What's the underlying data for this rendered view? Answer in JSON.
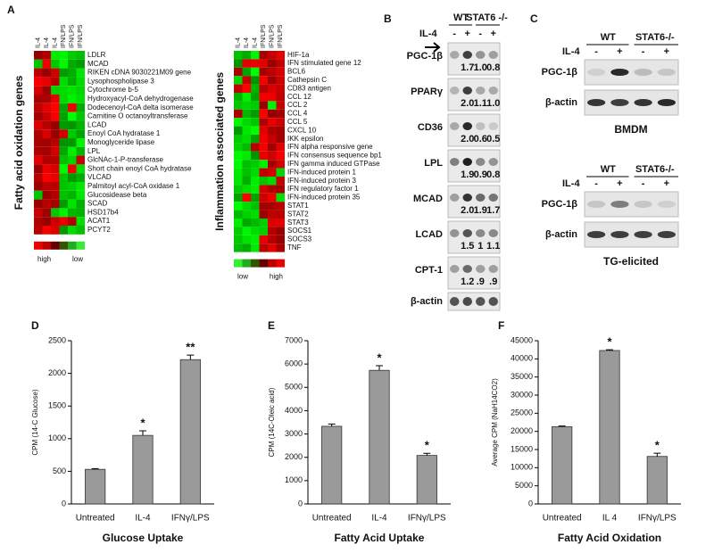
{
  "heatmap_a": {
    "label": "A",
    "left": {
      "title": "Fatty acid oxidation genes",
      "columns": [
        "IL-4",
        "IL-4",
        "IL-4",
        "IFN/LPS",
        "IFN/LPS",
        "IFN/LPS"
      ],
      "genes": [
        "LDLR",
        "MCAD",
        "RIKEN cDNA 9030221M09 gene",
        "Lysophospholipase 3",
        "Cytochrome b-5",
        "Hydroxyacyl-CoA dehydrogenase",
        "Dodecenoyl-CoA delta isomerase",
        "Carnitine O octanoyltransferase",
        "LCAD",
        "Enoyl CoA hydratase 1",
        "Monoglyceride lipase",
        "LPL",
        "GlcNAc-1-P-transferase",
        "Short chain enoyl CoA hydratase",
        "VLCAD",
        "Palmitoyl acyl-CoA oxidase 1",
        "Glucosidease beta",
        "SCAD",
        "HSD17b4",
        "ACAT1",
        "PCYT2"
      ],
      "legend": [
        "high",
        "low"
      ]
    },
    "right": {
      "title": "Inflammation associated genes",
      "columns": [
        "IL-4",
        "IL-4",
        "IL-4",
        "IFN/LPS",
        "IFN/LPS",
        "IFN/LPS"
      ],
      "genes": [
        "HIF-1a",
        "IFN stimulated gene 12",
        "BCL6",
        "Cathepsin C",
        "CD83 antigen",
        "CCL 12",
        "CCL 2",
        "CCL 4",
        "CCL 5",
        "CXCL 10",
        "IKK epsilon",
        "IFN alpha responsive gene",
        "IFN consensus sequence bp1",
        "IFN gamma induced GTPase",
        "IFN-induced protein 1",
        "IFN-induced protein 3",
        "IFN regulatory factor 1",
        "IFN-induced protein 35",
        "STAT1",
        "STAT2",
        "STAT3",
        "SOCS1",
        "SOCS3",
        "TNF"
      ],
      "legend": [
        "low",
        "high"
      ]
    }
  },
  "blot_b": {
    "label": "B",
    "groups": [
      "WT",
      "STAT6 -/-"
    ],
    "treatment": "IL-4",
    "signs": [
      "-",
      "+",
      "-",
      "+"
    ],
    "rows": [
      {
        "name": "PGC-1β",
        "values": [
          "1.7",
          "1.0",
          "0.8"
        ]
      },
      {
        "name": "PPARγ",
        "values": [
          "2.0",
          "1.1",
          "1.0"
        ]
      },
      {
        "name": "CD36",
        "values": [
          "2.0",
          "0.6",
          "0.5"
        ]
      },
      {
        "name": "LPL",
        "values": [
          "1.9",
          "0.9",
          "0.8"
        ]
      },
      {
        "name": "MCAD",
        "values": [
          "2.0",
          "1.9",
          "1.7"
        ]
      },
      {
        "name": "LCAD",
        "values": [
          "1.5",
          "1",
          "1.1"
        ]
      },
      {
        "name": "CPT-1",
        "values": [
          "1.2",
          ".9",
          ".9"
        ]
      },
      {
        "name": "β-actin",
        "values": []
      }
    ]
  },
  "blot_c": {
    "label": "C",
    "panels": [
      {
        "groups": [
          "WT",
          "STAT6-/-"
        ],
        "treatment": "IL-4",
        "signs": [
          "-",
          "+",
          "-",
          "+"
        ],
        "rows": [
          "PGC-1β",
          "β-actin"
        ],
        "caption": "BMDM"
      },
      {
        "groups": [
          "WT",
          "STAT6-/-"
        ],
        "treatment": "IL-4",
        "signs": [
          "-",
          "+",
          "-",
          "+"
        ],
        "rows": [
          "PGC-1β",
          "β-actin"
        ],
        "caption": "TG-elicited"
      }
    ]
  },
  "chart_data": [
    {
      "type": "bar",
      "label": "D",
      "title": "Glucose Uptake",
      "y_label": "CPM (14-C Glucose)",
      "categories": [
        "Untreated",
        "IL-4",
        "IFNγ/LPS"
      ],
      "values": [
        530,
        1050,
        2210
      ],
      "errors": [
        12,
        70,
        70
      ],
      "annotations": [
        {
          "category": "IL-4",
          "text": "*"
        },
        {
          "category": "IFNγ/LPS",
          "text": "**"
        }
      ],
      "color": "#9a9a9a",
      "ylim": [
        0,
        2500
      ],
      "yticks": [
        0,
        500,
        1000,
        1500,
        2000,
        2500
      ]
    },
    {
      "type": "bar",
      "label": "E",
      "title": "Fatty Acid Uptake",
      "y_label": "CPM (14C-Oleic acid)",
      "categories": [
        "Untreated",
        "IL-4",
        "IFNγ/LPS"
      ],
      "values": [
        3330,
        5730,
        2080
      ],
      "errors": [
        100,
        200,
        90
      ],
      "annotations": [
        {
          "category": "IL-4",
          "text": "*"
        },
        {
          "category": "IFNγ/LPS",
          "text": "*"
        }
      ],
      "color": "#9a9a9a",
      "ylim": [
        0,
        7000
      ],
      "yticks": [
        0,
        1000,
        2000,
        3000,
        4000,
        5000,
        6000,
        7000
      ]
    },
    {
      "type": "bar",
      "label": "F",
      "title": "Fatty Acid Oxidation",
      "y_label": "Average CPM (NaH14CO2)",
      "categories": [
        "Untreated",
        "IL 4",
        "IFNγ/LPS"
      ],
      "values": [
        21300,
        42300,
        13100
      ],
      "errors": [
        200,
        200,
        900
      ],
      "annotations": [
        {
          "category": "IL 4",
          "text": "*"
        },
        {
          "category": "IFNγ/LPS",
          "text": "*"
        }
      ],
      "color": "#9a9a9a",
      "ylim": [
        0,
        45000
      ],
      "yticks": [
        0,
        5000,
        10000,
        15000,
        20000,
        25000,
        30000,
        35000,
        40000,
        45000
      ]
    }
  ]
}
